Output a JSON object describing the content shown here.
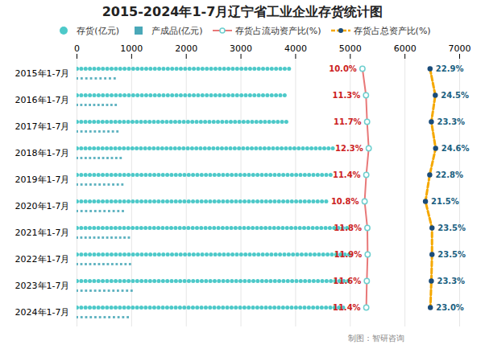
{
  "chart_data": {
    "type": "dot",
    "title": "2015-2024年1-7月辽宁省工业企业存货统计图",
    "caption": "制图：智研咨询",
    "orientation": "horizontal",
    "categories": [
      "2015年1-7月",
      "2016年1-7月",
      "2017年1-7月",
      "2018年1-7月",
      "2019年1-7月",
      "2020年1-7月",
      "2021年1-7月",
      "2022年1-7月",
      "2023年1-7月",
      "2024年1-7月"
    ],
    "xlim": [
      0,
      7000
    ],
    "xticks": [
      0,
      1000,
      2000,
      3000,
      4000,
      5000,
      6000,
      7000
    ],
    "grid": true,
    "legend": "top",
    "series": [
      {
        "name": "存货(亿元)",
        "type": "dot",
        "marker": "circle",
        "color": "#4DC9C9",
        "values": [
          3880,
          3800,
          3830,
          4680,
          4640,
          4560,
          4940,
          4980,
          4960,
          4870
        ]
      },
      {
        "name": "产成品(亿元)",
        "type": "dot",
        "marker": "square",
        "color": "#4AA8B8",
        "values": [
          690,
          710,
          740,
          800,
          830,
          840,
          950,
          970,
          1000,
          930
        ]
      },
      {
        "name": "存货占流动资产比(%)",
        "type": "line",
        "line_style": "solid",
        "marker": "circle",
        "color": "#E87878",
        "values": [
          10.0,
          11.3,
          11.7,
          12.3,
          11.4,
          10.8,
          11.8,
          11.9,
          11.6,
          11.4
        ],
        "data_labels": true,
        "value_labels": [
          "10.0%",
          "11.3%",
          "11.7%",
          "12.3%",
          "11.4%",
          "10.8%",
          "11.8%",
          "11.9%",
          "11.6%",
          "11.4%"
        ]
      },
      {
        "name": "存货占总资产比(%)",
        "type": "line",
        "line_style": "dashed",
        "marker": "circle",
        "color": "#F5A800",
        "values": [
          22.9,
          24.5,
          23.3,
          24.6,
          22.8,
          21.5,
          23.5,
          23.5,
          23.3,
          23.0
        ],
        "data_labels": true,
        "value_labels": [
          "22.9%",
          "24.5%",
          "23.3%",
          "24.6%",
          "22.8%",
          "21.5%",
          "23.5%",
          "23.5%",
          "23.3%",
          "23.0%"
        ]
      }
    ]
  }
}
